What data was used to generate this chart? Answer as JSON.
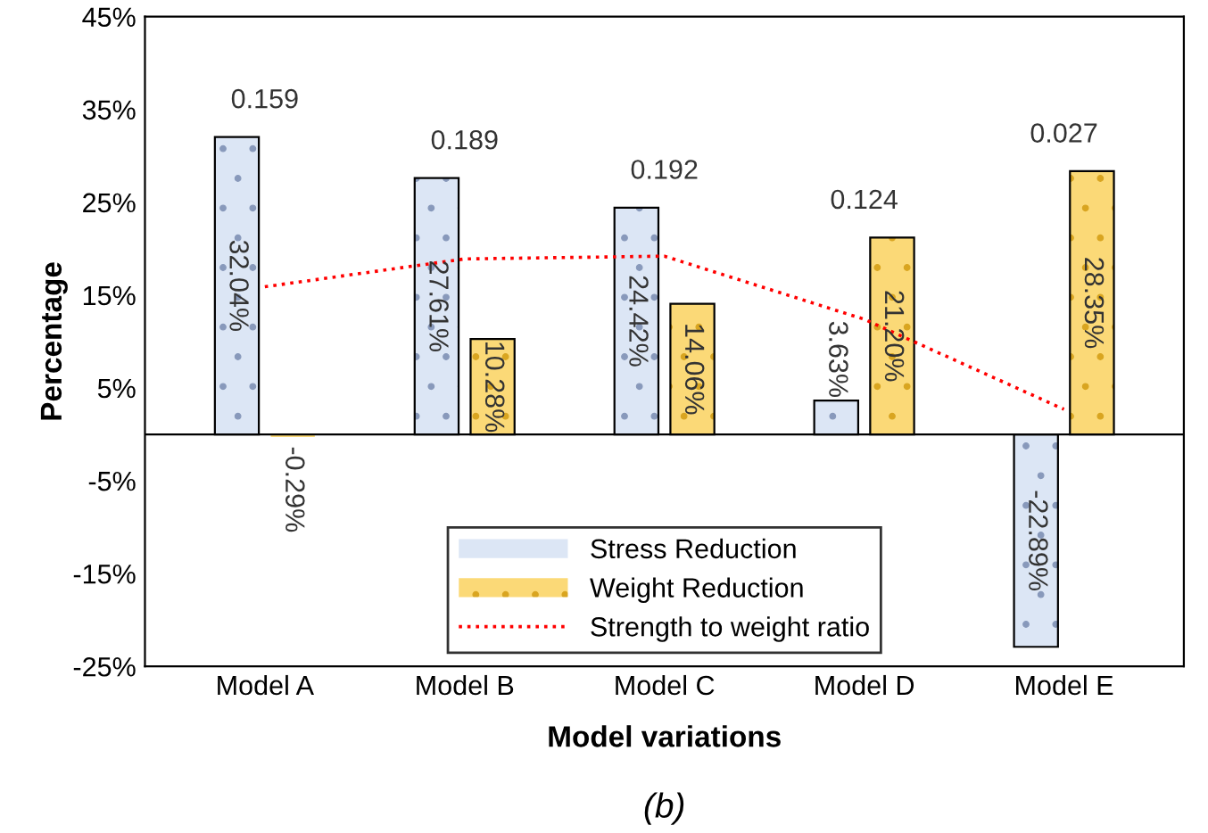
{
  "chart_data": {
    "type": "bar",
    "xlabel": "Model variations",
    "ylabel": "Percentage",
    "categories": [
      "Model A",
      "Model B",
      "Model C",
      "Model D",
      "Model E"
    ],
    "series": [
      {
        "name": "Stress Reduction",
        "color": "#dce6f5",
        "values": [
          32.04,
          27.61,
          24.42,
          3.63,
          -22.89
        ],
        "value_labels": [
          "32.04%",
          "27.61%",
          "24.42%",
          "3.63%",
          "-22.89%"
        ]
      },
      {
        "name": "Weight Reduction",
        "color": "#fbd977",
        "values": [
          -0.29,
          10.28,
          14.06,
          21.2,
          28.35
        ],
        "value_labels": [
          "-0.29%",
          "10.28%",
          "14.06%",
          "21.20%",
          "28.35%"
        ]
      },
      {
        "name": "Strength to weight ratio",
        "type": "line",
        "color": "#ff0000",
        "line_style": "dotted",
        "marker": "none",
        "values": [
          15.9,
          18.9,
          19.2,
          12.4,
          2.7
        ]
      }
    ],
    "ylim": [
      -25,
      45
    ],
    "yticks": [
      {
        "value": -25,
        "label": "-25%"
      },
      {
        "value": -15,
        "label": "-15%"
      },
      {
        "value": -5,
        "label": "-5%"
      },
      {
        "value": 5,
        "label": "5%"
      },
      {
        "value": 15,
        "label": "15%"
      },
      {
        "value": 25,
        "label": "25%"
      },
      {
        "value": 35,
        "label": "35%"
      },
      {
        "value": 45,
        "label": "45%"
      }
    ],
    "ref_lines": [
      {
        "axis": "y",
        "value": 0,
        "color": "#000000"
      }
    ],
    "grid": false,
    "legend": "bottom",
    "annotations": [
      "0.159",
      "0.189",
      "0.192",
      "0.124",
      "0.027",
      "(b)"
    ]
  }
}
